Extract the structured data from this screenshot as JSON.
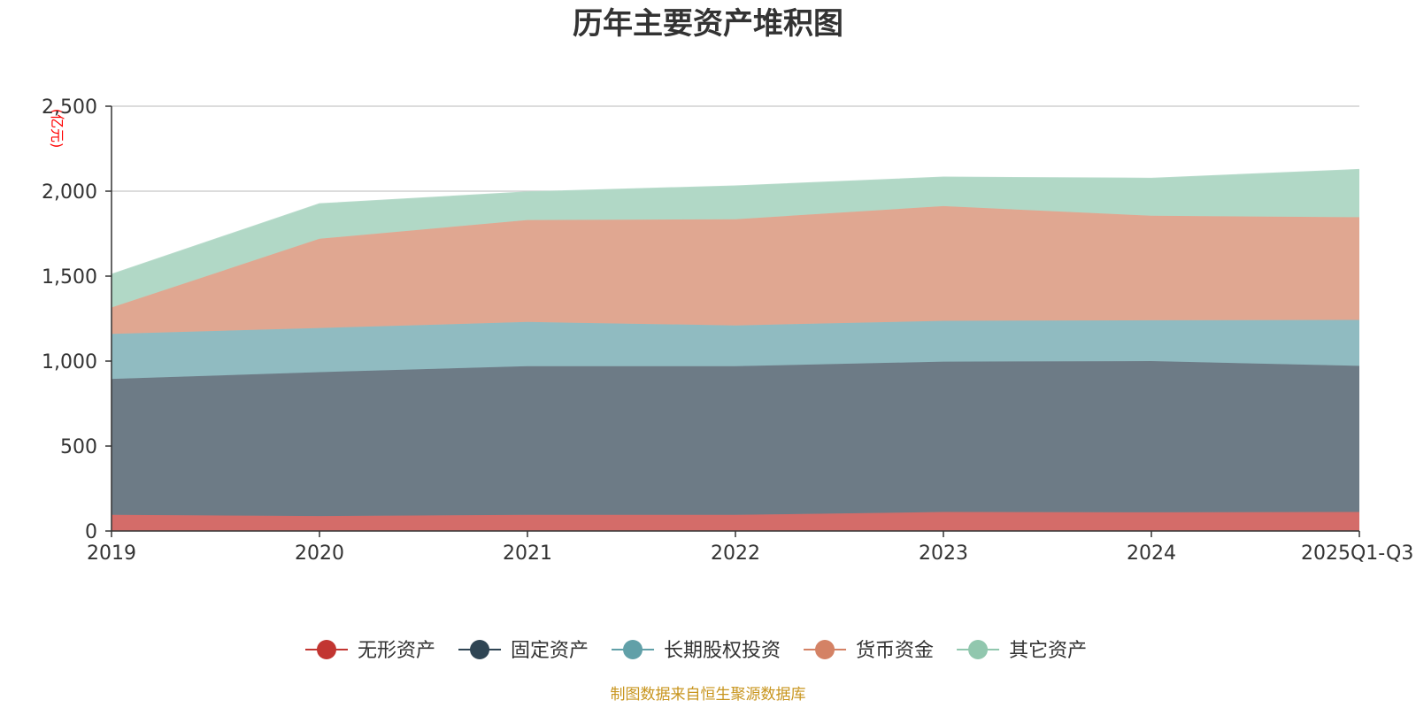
{
  "chart_data": {
    "type": "area",
    "stacked": true,
    "title": "历年主要资产堆积图",
    "unit_label": "(亿元)",
    "categories": [
      "2019",
      "2020",
      "2021",
      "2022",
      "2023",
      "2024",
      "2025Q1-Q3"
    ],
    "ylim": [
      0,
      2500
    ],
    "yticks": [
      0,
      500,
      1000,
      1500,
      2000,
      2500
    ],
    "ytick_labels": [
      "0",
      "500",
      "1,000",
      "1,500",
      "2,000",
      "2,500"
    ],
    "grid": true,
    "legend_position": "bottom",
    "series": [
      {
        "name": "无形资产",
        "color": "#c23531",
        "fill": "#d46c69",
        "values": [
          95,
          88,
          95,
          95,
          112,
          110,
          112
        ]
      },
      {
        "name": "固定资产",
        "color": "#2f4554",
        "fill": "#6d7b86",
        "values": [
          800,
          847,
          875,
          875,
          885,
          890,
          860
        ]
      },
      {
        "name": "长期股权投资",
        "color": "#61a0a8",
        "fill": "#90bbc1",
        "values": [
          265,
          260,
          260,
          240,
          240,
          240,
          270
        ]
      },
      {
        "name": "货币资金",
        "color": "#d48265",
        "fill": "#e0a791",
        "values": [
          155,
          525,
          600,
          625,
          675,
          615,
          605
        ]
      },
      {
        "name": "其它资产",
        "color": "#91c7ae",
        "fill": "#b1d8c6",
        "values": [
          195,
          205,
          165,
          195,
          170,
          220,
          280
        ]
      }
    ],
    "source_note": "制图数据来自恒生聚源数据库"
  }
}
